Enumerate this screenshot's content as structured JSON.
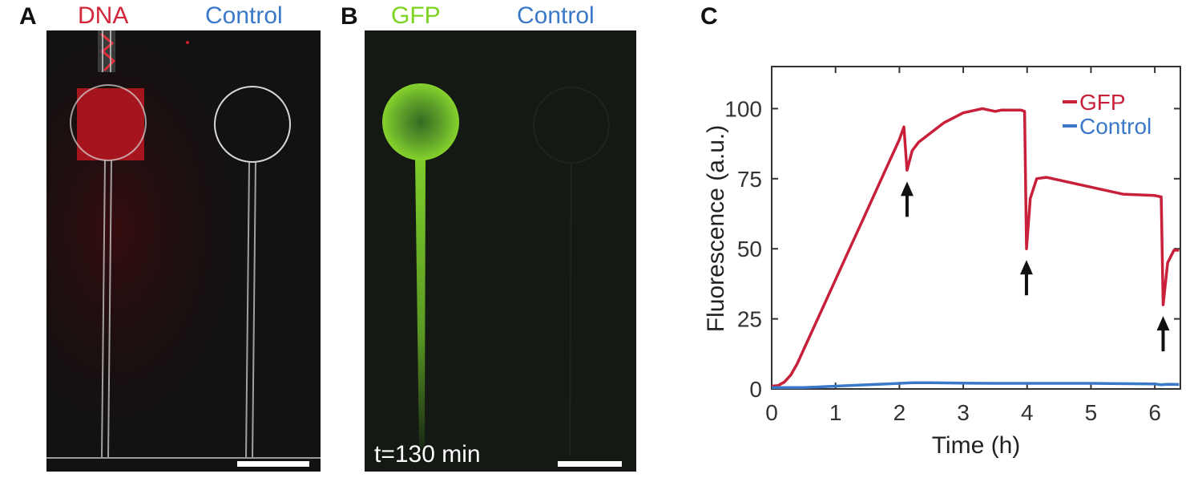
{
  "panels": {
    "a": {
      "letter": "A",
      "label_left": "DNA",
      "label_right": "Control",
      "color_left": "#d4263a",
      "color_right": "#3a78c9"
    },
    "b": {
      "letter": "B",
      "label_left": "GFP",
      "label_right": "Control",
      "color_left": "#7ed321",
      "color_right": "#3a78c9",
      "timestamp": "t=130 min"
    },
    "c": {
      "letter": "C"
    }
  },
  "chart_data": {
    "type": "line",
    "xlabel": "Time (h)",
    "ylabel": "Fluorescence (a.u.)",
    "xlim": [
      0,
      6.4
    ],
    "ylim": [
      0,
      115
    ],
    "xticks": [
      0,
      1,
      2,
      3,
      4,
      5,
      6
    ],
    "yticks": [
      0,
      25,
      50,
      75,
      100
    ],
    "legend_position": "top-right",
    "series": [
      {
        "name": "GFP",
        "color": "#c8203a",
        "points": [
          [
            0,
            1
          ],
          [
            0.1,
            1.2
          ],
          [
            0.2,
            2.5
          ],
          [
            0.3,
            5
          ],
          [
            0.4,
            9
          ],
          [
            0.5,
            14
          ],
          [
            0.6,
            19
          ],
          [
            0.8,
            29
          ],
          [
            1.0,
            39
          ],
          [
            1.2,
            49
          ],
          [
            1.4,
            59
          ],
          [
            1.6,
            69
          ],
          [
            1.8,
            79
          ],
          [
            2.0,
            89
          ],
          [
            2.07,
            93.5
          ],
          [
            2.12,
            78
          ],
          [
            2.2,
            85
          ],
          [
            2.3,
            88
          ],
          [
            2.5,
            91.5
          ],
          [
            2.7,
            95
          ],
          [
            3.0,
            98.5
          ],
          [
            3.3,
            100
          ],
          [
            3.5,
            99
          ],
          [
            3.6,
            99.5
          ],
          [
            3.9,
            99.5
          ],
          [
            3.96,
            99
          ],
          [
            3.99,
            50
          ],
          [
            4.05,
            68
          ],
          [
            4.15,
            75
          ],
          [
            4.3,
            75.5
          ],
          [
            4.6,
            74
          ],
          [
            5.0,
            72
          ],
          [
            5.5,
            69.5
          ],
          [
            6.0,
            69
          ],
          [
            6.1,
            68.5
          ],
          [
            6.13,
            30
          ],
          [
            6.2,
            45
          ],
          [
            6.3,
            49.5
          ],
          [
            6.38,
            49.5
          ]
        ]
      },
      {
        "name": "Control",
        "color": "#3a78c9",
        "points": [
          [
            0,
            0.5
          ],
          [
            0.5,
            0.5
          ],
          [
            1.0,
            1
          ],
          [
            1.5,
            1.5
          ],
          [
            1.8,
            1.8
          ],
          [
            2.0,
            2
          ],
          [
            2.2,
            2.2
          ],
          [
            2.5,
            2.2
          ],
          [
            3.0,
            2.1
          ],
          [
            3.5,
            2
          ],
          [
            4.0,
            2
          ],
          [
            4.5,
            2
          ],
          [
            5.0,
            2
          ],
          [
            5.5,
            1.9
          ],
          [
            6.0,
            1.8
          ],
          [
            6.1,
            1.5
          ],
          [
            6.2,
            1.7
          ],
          [
            6.38,
            1.6
          ]
        ]
      }
    ],
    "arrows": [
      {
        "x": 2.12,
        "y": 78
      },
      {
        "x": 3.99,
        "y": 50
      },
      {
        "x": 6.13,
        "y": 30
      }
    ],
    "legend": [
      "GFP",
      "Control"
    ]
  }
}
